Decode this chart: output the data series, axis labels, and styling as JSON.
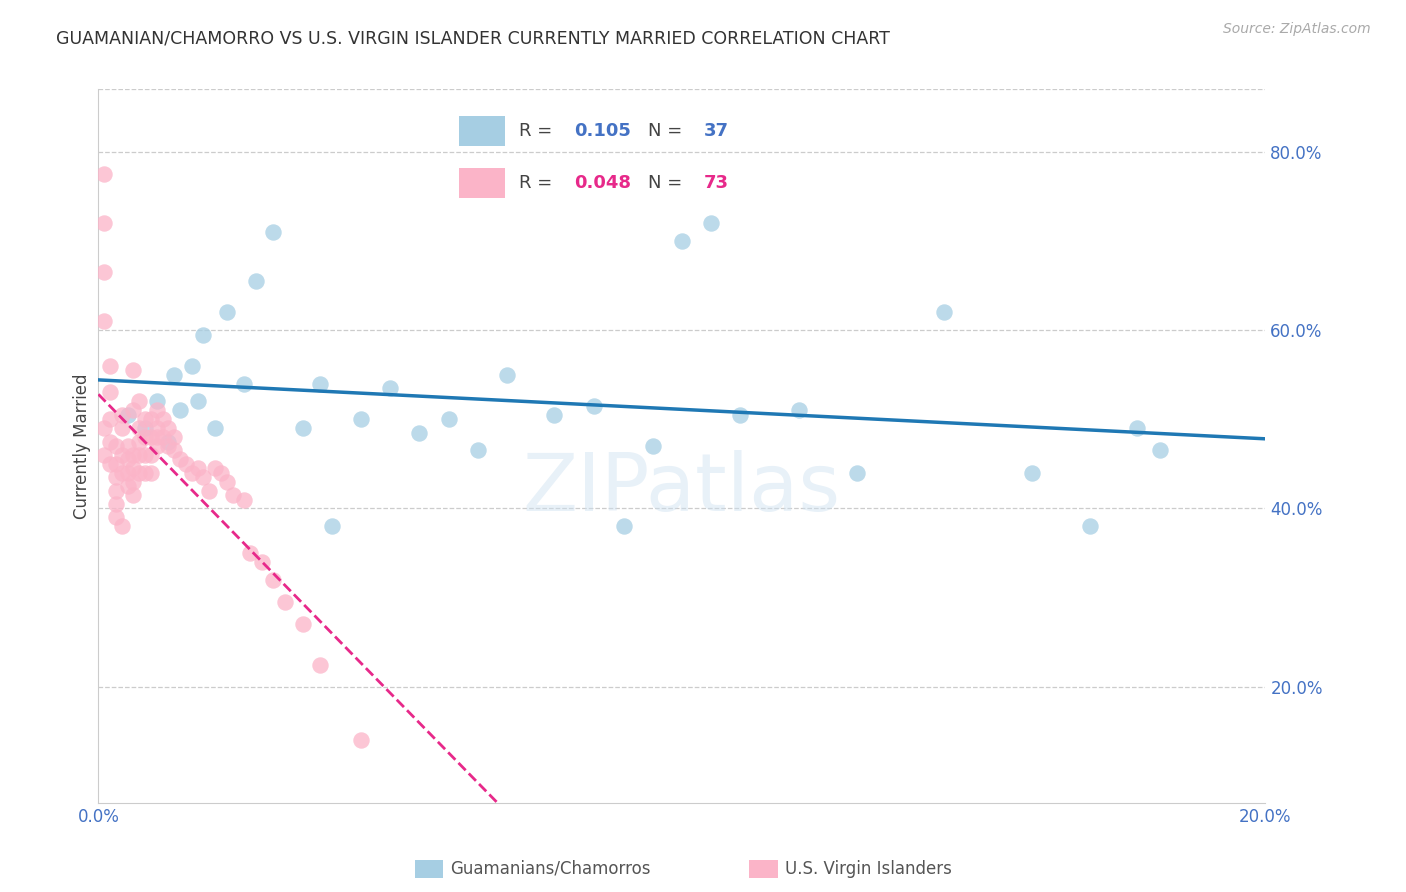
{
  "title": "GUAMANIAN/CHAMORRO VS U.S. VIRGIN ISLANDER CURRENTLY MARRIED CORRELATION CHART",
  "source": "Source: ZipAtlas.com",
  "ylabel": "Currently Married",
  "legend_label_blue": "Guamanians/Chamorros",
  "legend_label_pink": "U.S. Virgin Islanders",
  "xlim": [
    0.0,
    0.2
  ],
  "ylim": [
    0.07,
    0.87
  ],
  "xtick_vals": [
    0.0,
    0.05,
    0.1,
    0.15,
    0.2
  ],
  "right_ytick_vals": [
    0.2,
    0.4,
    0.6,
    0.8
  ],
  "right_ytick_labels": [
    "20.0%",
    "40.0%",
    "60.0%",
    "80.0%"
  ],
  "blue_R": 0.105,
  "blue_N": 37,
  "pink_R": 0.048,
  "pink_N": 73,
  "blue_color": "#a6cee3",
  "pink_color": "#fbb4c8",
  "blue_line_color": "#1f78b4",
  "pink_line_color": "#e7298a",
  "axis_tick_color": "#4472c4",
  "title_color": "#333333",
  "blue_x": [
    0.005,
    0.008,
    0.01,
    0.012,
    0.013,
    0.014,
    0.016,
    0.017,
    0.018,
    0.02,
    0.022,
    0.025,
    0.027,
    0.03,
    0.035,
    0.038,
    0.04,
    0.045,
    0.05,
    0.055,
    0.06,
    0.065,
    0.07,
    0.078,
    0.085,
    0.09,
    0.095,
    0.1,
    0.105,
    0.11,
    0.12,
    0.13,
    0.145,
    0.16,
    0.17,
    0.178,
    0.182
  ],
  "blue_y": [
    0.505,
    0.49,
    0.52,
    0.475,
    0.55,
    0.51,
    0.56,
    0.52,
    0.595,
    0.49,
    0.62,
    0.54,
    0.655,
    0.71,
    0.49,
    0.54,
    0.38,
    0.5,
    0.535,
    0.485,
    0.5,
    0.465,
    0.55,
    0.505,
    0.515,
    0.38,
    0.47,
    0.7,
    0.72,
    0.505,
    0.51,
    0.44,
    0.62,
    0.44,
    0.38,
    0.49,
    0.465
  ],
  "pink_x": [
    0.001,
    0.001,
    0.001,
    0.001,
    0.001,
    0.001,
    0.002,
    0.002,
    0.002,
    0.002,
    0.002,
    0.003,
    0.003,
    0.003,
    0.003,
    0.003,
    0.003,
    0.004,
    0.004,
    0.004,
    0.004,
    0.004,
    0.005,
    0.005,
    0.005,
    0.005,
    0.006,
    0.006,
    0.006,
    0.006,
    0.006,
    0.006,
    0.007,
    0.007,
    0.007,
    0.007,
    0.007,
    0.008,
    0.008,
    0.008,
    0.008,
    0.009,
    0.009,
    0.009,
    0.009,
    0.01,
    0.01,
    0.01,
    0.01,
    0.011,
    0.011,
    0.012,
    0.012,
    0.013,
    0.013,
    0.014,
    0.015,
    0.016,
    0.017,
    0.018,
    0.019,
    0.02,
    0.021,
    0.022,
    0.023,
    0.025,
    0.026,
    0.028,
    0.03,
    0.032,
    0.035,
    0.038,
    0.045
  ],
  "pink_y": [
    0.775,
    0.72,
    0.665,
    0.61,
    0.49,
    0.46,
    0.56,
    0.53,
    0.5,
    0.475,
    0.45,
    0.47,
    0.45,
    0.435,
    0.42,
    0.405,
    0.39,
    0.38,
    0.505,
    0.49,
    0.46,
    0.44,
    0.47,
    0.455,
    0.44,
    0.425,
    0.46,
    0.445,
    0.43,
    0.415,
    0.51,
    0.555,
    0.49,
    0.475,
    0.46,
    0.44,
    0.52,
    0.5,
    0.48,
    0.46,
    0.44,
    0.5,
    0.48,
    0.46,
    0.44,
    0.48,
    0.51,
    0.49,
    0.47,
    0.5,
    0.48,
    0.49,
    0.47,
    0.48,
    0.465,
    0.455,
    0.45,
    0.44,
    0.445,
    0.435,
    0.42,
    0.445,
    0.44,
    0.43,
    0.415,
    0.41,
    0.35,
    0.34,
    0.32,
    0.295,
    0.27,
    0.225,
    0.14
  ]
}
